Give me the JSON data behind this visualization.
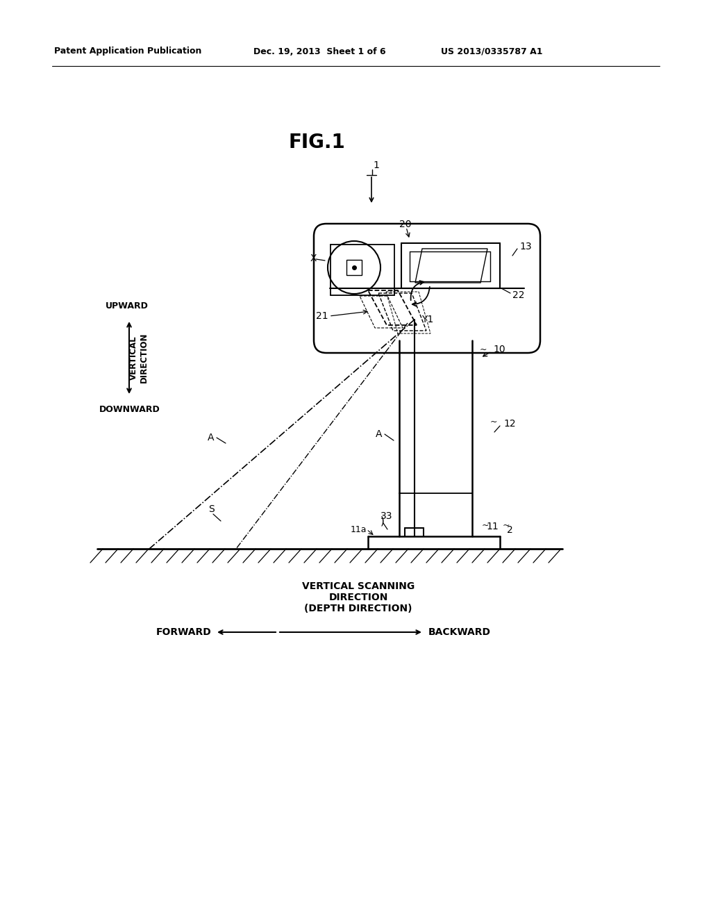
{
  "bg_color": "#ffffff",
  "header_left": "Patent Application Publication",
  "header_mid": "Dec. 19, 2013  Sheet 1 of 6",
  "header_right": "US 2013/0335787 A1"
}
